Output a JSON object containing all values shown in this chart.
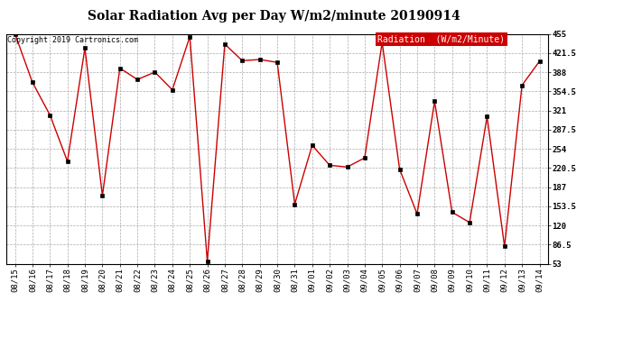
{
  "title": "Solar Radiation Avg per Day W/m2/minute 20190914",
  "copyright": "Copyright 2019 Cartronics.com",
  "legend_label": "Radiation  (W/m2/Minute)",
  "x_labels": [
    "08/15",
    "08/16",
    "08/17",
    "08/18",
    "08/19",
    "08/20",
    "08/21",
    "08/22",
    "08/23",
    "08/24",
    "08/25",
    "08/26",
    "08/27",
    "08/28",
    "08/29",
    "08/30",
    "08/31",
    "09/01",
    "09/02",
    "09/03",
    "09/04",
    "09/05",
    "09/06",
    "09/07",
    "09/08",
    "09/09",
    "09/10",
    "09/11",
    "09/12",
    "09/13",
    "09/14"
  ],
  "y_values": [
    455.0,
    370.0,
    313.0,
    232.0,
    430.0,
    172.0,
    395.0,
    375.0,
    388.0,
    357.0,
    450.0,
    57.0,
    437.0,
    408.0,
    410.0,
    405.0,
    157.0,
    260.0,
    225.0,
    222.0,
    238.0,
    440.0,
    218.0,
    140.0,
    337.0,
    143.0,
    125.0,
    310.0,
    83.0,
    365.0,
    407.0
  ],
  "line_color": "#cc0000",
  "marker_color": "#000000",
  "bg_color": "#ffffff",
  "grid_color": "#aaaaaa",
  "legend_bg": "#cc0000",
  "legend_text_color": "#ffffff",
  "ylim_min": 53.0,
  "ylim_max": 455.0,
  "yticks": [
    53.0,
    86.5,
    120.0,
    153.5,
    187.0,
    220.5,
    254.0,
    287.5,
    321.0,
    354.5,
    388.0,
    421.5,
    455.0
  ],
  "title_fontsize": 10,
  "copyright_fontsize": 6,
  "tick_fontsize": 6.5,
  "legend_fontsize": 7
}
